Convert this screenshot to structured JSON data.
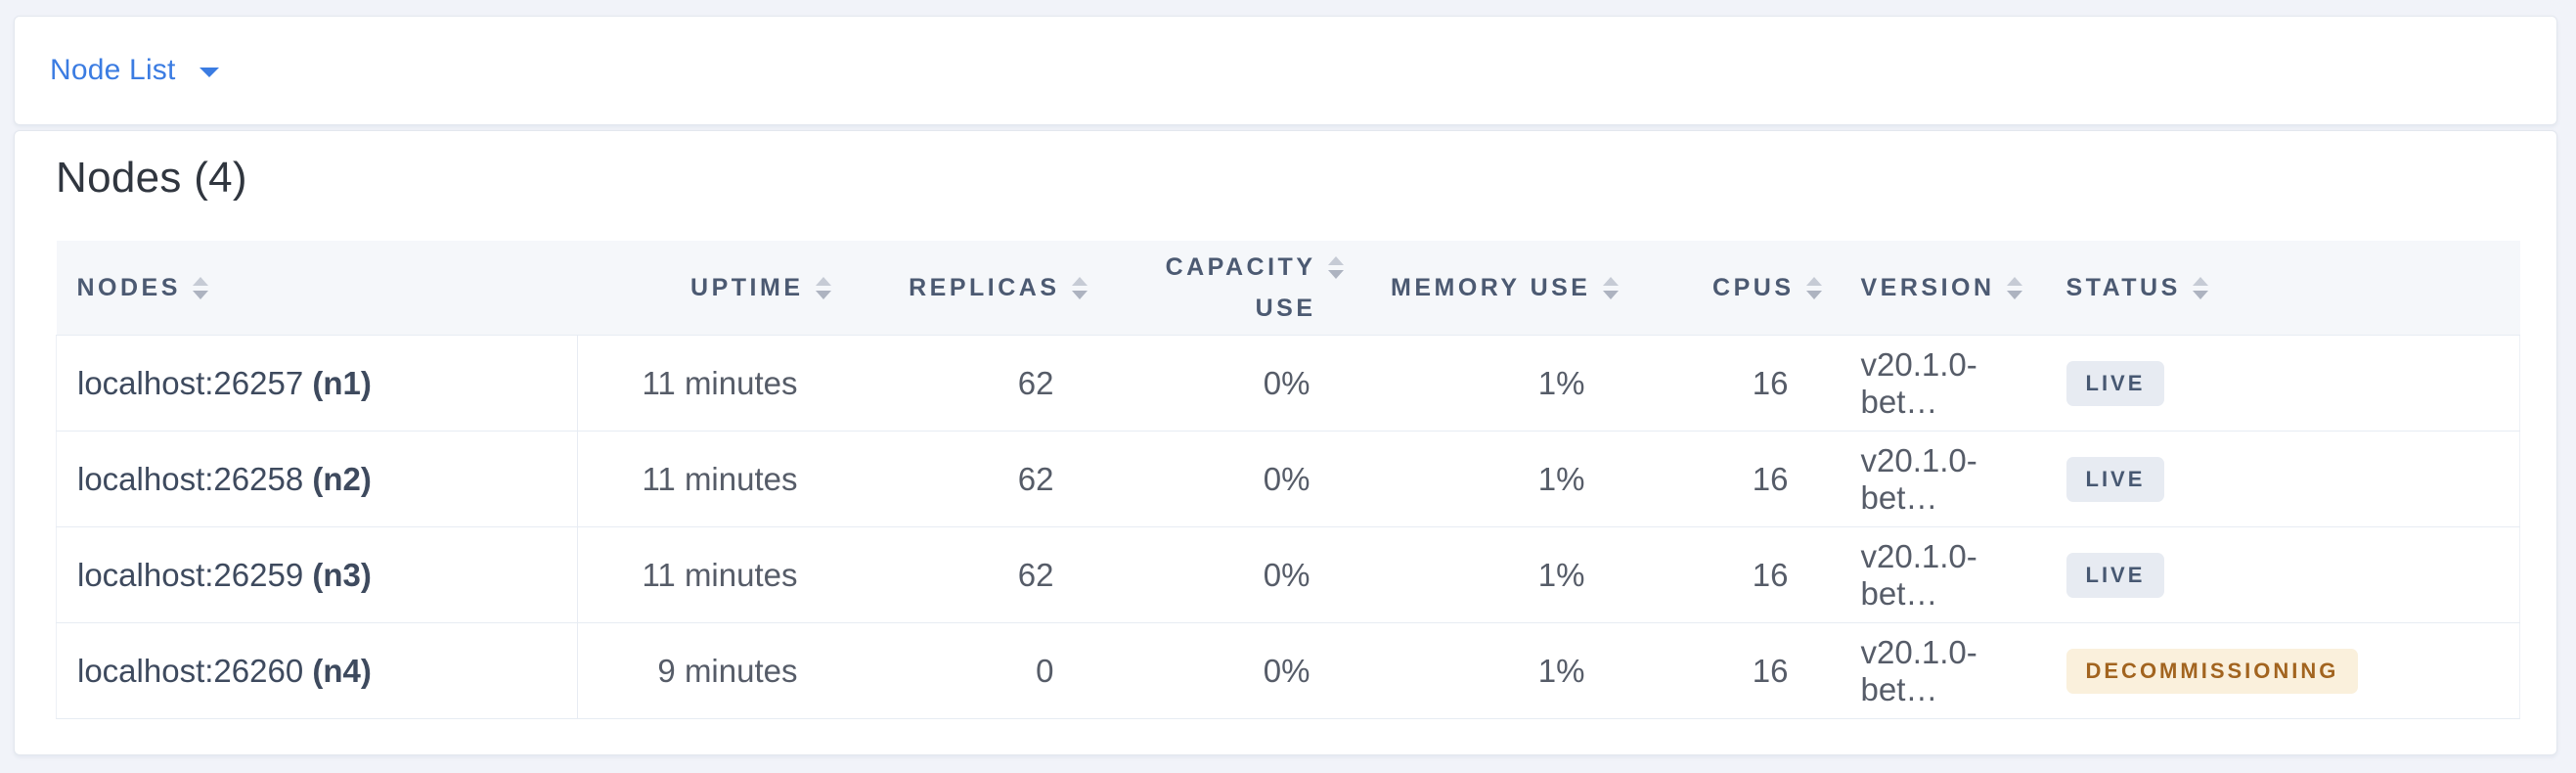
{
  "header_bar": {
    "view_dropdown": {
      "label": "Node List"
    }
  },
  "main": {
    "title": "Nodes (4)",
    "table": {
      "columns": [
        {
          "label": "NODES"
        },
        {
          "label": "UPTIME"
        },
        {
          "label": "REPLICAS"
        },
        {
          "label": "CAPACITY USE"
        },
        {
          "label": "MEMORY USE"
        },
        {
          "label": "CPUS"
        },
        {
          "label": "VERSION"
        },
        {
          "label": "STATUS"
        }
      ],
      "rows": [
        {
          "node_address": "localhost:26257",
          "node_id": "(n1)",
          "uptime": "11 minutes",
          "replicas": "62",
          "capacity_use": "0%",
          "memory_use": "1%",
          "cpus": "16",
          "version": "v20.1.0-bet…",
          "status": "LIVE",
          "status_type": "live"
        },
        {
          "node_address": "localhost:26258",
          "node_id": "(n2)",
          "uptime": "11 minutes",
          "replicas": "62",
          "capacity_use": "0%",
          "memory_use": "1%",
          "cpus": "16",
          "version": "v20.1.0-bet…",
          "status": "LIVE",
          "status_type": "live"
        },
        {
          "node_address": "localhost:26259",
          "node_id": "(n3)",
          "uptime": "11 minutes",
          "replicas": "62",
          "capacity_use": "0%",
          "memory_use": "1%",
          "cpus": "16",
          "version": "v20.1.0-bet…",
          "status": "LIVE",
          "status_type": "live"
        },
        {
          "node_address": "localhost:26260",
          "node_id": "(n4)",
          "uptime": "9 minutes",
          "replicas": "0",
          "capacity_use": "0%",
          "memory_use": "1%",
          "cpus": "16",
          "version": "v20.1.0-bet…",
          "status": "DECOMMISSIONING",
          "status_type": "decommissioning"
        }
      ]
    }
  },
  "colors": {
    "accent_blue": "#3b7ce2",
    "header_text": "#4c5a72",
    "live_badge_bg": "#e7ebf2",
    "live_badge_text": "#475872",
    "decommissioning_badge_bg": "#faf0dc",
    "decommissioning_badge_text": "#a2641f"
  }
}
